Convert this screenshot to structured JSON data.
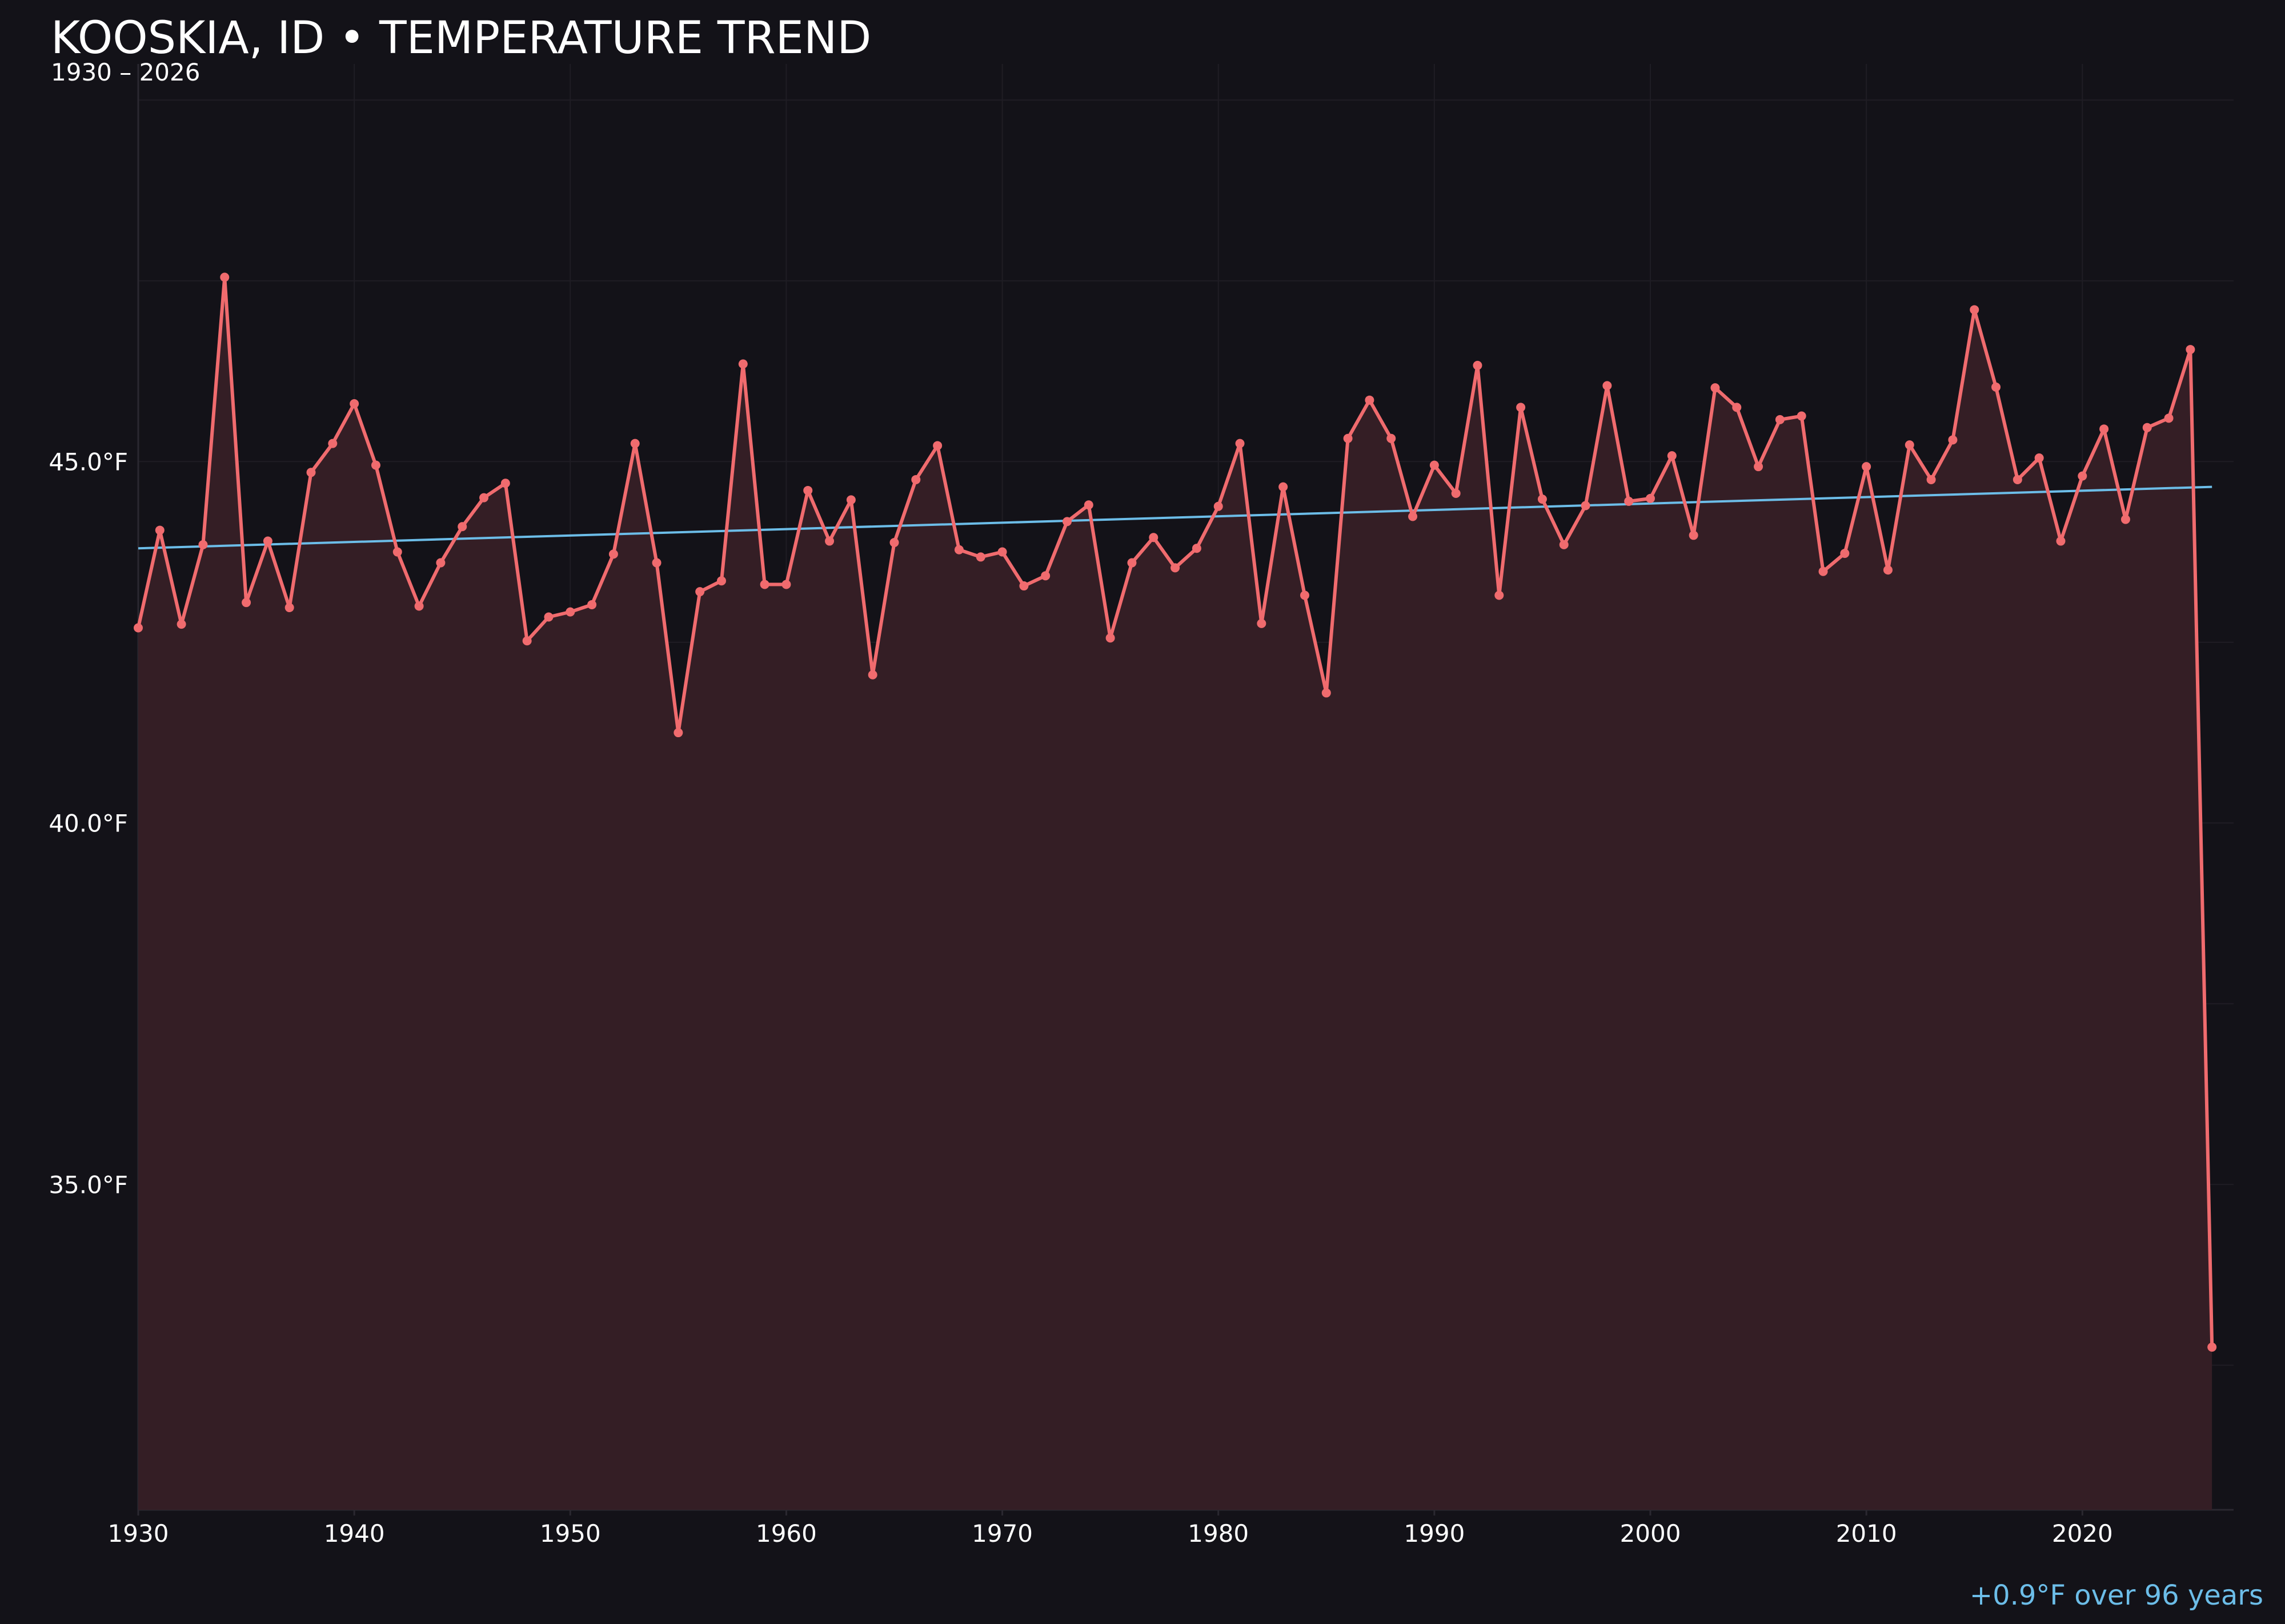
{
  "header": {
    "title": "KOOSKIA, ID • TEMPERATURE TREND",
    "subtitle": "1930 – 2026"
  },
  "footer": {
    "trend_note": "+0.9°F over 96 years"
  },
  "colors": {
    "background": "#131218",
    "series_line": "#f06b6e",
    "series_fill": "#341e25",
    "trend_line": "#6cbde8",
    "grid": "#1f1d24",
    "axis": "#2a2830",
    "text": "#ffffff"
  },
  "chart_data": {
    "type": "line",
    "title": "KOOSKIA, ID • TEMPERATURE TREND",
    "subtitle": "1930 – 2026",
    "xlabel": "",
    "ylabel": "",
    "xlim": [
      1930,
      2027
    ],
    "ylim": [
      30.5,
      50.5
    ],
    "x_ticks": [
      1930,
      1940,
      1950,
      1960,
      1970,
      1980,
      1990,
      2000,
      2010,
      2020
    ],
    "y_ticks": [
      35.0,
      40.0,
      45.0
    ],
    "y_tick_labels": [
      "35.0°F",
      "40.0°F",
      "45.0°F"
    ],
    "grid": true,
    "series": [
      {
        "x": [
          1930,
          1931,
          1932,
          1933,
          1934,
          1935,
          1936,
          1937,
          1938,
          1939,
          1940,
          1941,
          1942,
          1943,
          1944,
          1945,
          1946,
          1947,
          1948,
          1949,
          1950,
          1951,
          1952,
          1953,
          1954,
          1955,
          1956,
          1957,
          1958,
          1959,
          1960,
          1961,
          1962,
          1963,
          1964,
          1965,
          1966,
          1967,
          1968,
          1969,
          1970,
          1971,
          1972,
          1973,
          1974,
          1975,
          1976,
          1977,
          1978,
          1979,
          1980,
          1981,
          1982,
          1983,
          1984,
          1985,
          1986,
          1987,
          1988,
          1989,
          1990,
          1991,
          1992,
          1993,
          1994,
          1995,
          1996,
          1997,
          1998,
          1999,
          2000,
          2001,
          2002,
          2003,
          2004,
          2005,
          2006,
          2007,
          2008,
          2009,
          2010,
          2011,
          2012,
          2013,
          2014,
          2015,
          2016,
          2017,
          2018,
          2019,
          2020,
          2021,
          2022,
          2023,
          2024,
          2025,
          2026
        ],
        "values": [
          42.7,
          44.05,
          42.75,
          43.85,
          47.55,
          43.05,
          43.9,
          42.98,
          44.85,
          45.25,
          45.8,
          44.95,
          43.75,
          43.0,
          43.6,
          44.1,
          44.5,
          44.7,
          42.52,
          42.85,
          42.92,
          43.02,
          43.72,
          45.25,
          43.6,
          41.25,
          43.2,
          43.35,
          46.35,
          43.3,
          43.3,
          44.6,
          43.9,
          44.47,
          42.05,
          43.88,
          44.75,
          45.22,
          43.78,
          43.68,
          43.75,
          43.28,
          43.42,
          44.17,
          44.4,
          42.56,
          43.6,
          43.95,
          43.53,
          43.8,
          44.38,
          45.25,
          42.76,
          44.65,
          43.15,
          41.8,
          45.32,
          45.85,
          45.32,
          44.24,
          44.95,
          44.56,
          46.33,
          43.15,
          45.75,
          44.48,
          43.85,
          44.39,
          46.05,
          44.45,
          44.49,
          45.08,
          43.98,
          46.02,
          45.75,
          44.93,
          45.58,
          45.63,
          43.48,
          43.73,
          44.93,
          43.5,
          45.23,
          44.75,
          45.3,
          47.1,
          46.03,
          44.75,
          45.05,
          43.9,
          44.8,
          45.45,
          44.2,
          45.47,
          45.6,
          46.55,
          32.75
        ]
      }
    ],
    "trend": {
      "start": [
        1930,
        43.8
      ],
      "end": [
        2026,
        44.65
      ]
    },
    "annotation": "+0.9°F over 96 years"
  }
}
